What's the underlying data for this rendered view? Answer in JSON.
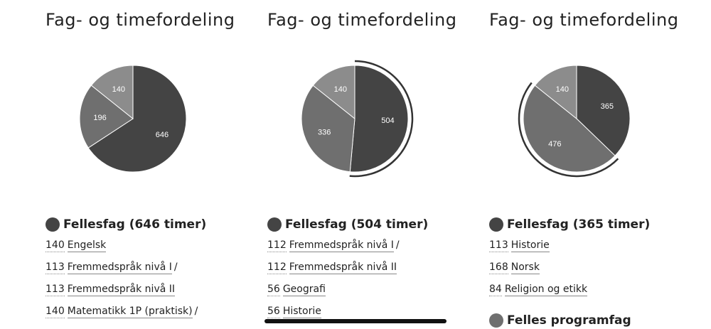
{
  "colors": {
    "dark": "#444444",
    "mid": "#6f6f6f",
    "light": "#8c8c8c"
  },
  "columns": [
    {
      "title": "Fag- og timefordeling",
      "group": "Fellesfag (646 timer)",
      "group_color": "#444444",
      "subjects": [
        {
          "hours": "140",
          "name": "Engelsk",
          "suffix": ""
        },
        {
          "hours": "113",
          "name": "Fremmedspråk nivå I",
          "suffix": "/"
        },
        {
          "hours": "113",
          "name": "Fremmedspråk nivå II",
          "suffix": ""
        },
        {
          "hours": "140",
          "name": "Matematikk 1P (praktisk)",
          "suffix": "/"
        }
      ],
      "next_group": ""
    },
    {
      "title": "Fag- og timefordeling",
      "group": "Fellesfag (504 timer)",
      "group_color": "#444444",
      "subjects": [
        {
          "hours": "112",
          "name": "Fremmedspråk nivå I",
          "suffix": "/"
        },
        {
          "hours": "112",
          "name": "Fremmedspråk nivå II",
          "suffix": ""
        },
        {
          "hours": "56",
          "name": "Geografi",
          "suffix": ""
        },
        {
          "hours": "56",
          "name": "Historie",
          "suffix": ""
        }
      ],
      "next_group": ""
    },
    {
      "title": "Fag- og timefordeling",
      "group": "Fellesfag (365 timer)",
      "group_color": "#444444",
      "subjects": [
        {
          "hours": "113",
          "name": "Historie",
          "suffix": ""
        },
        {
          "hours": "168",
          "name": "Norsk",
          "suffix": ""
        },
        {
          "hours": "84",
          "name": "Religion og etikk",
          "suffix": ""
        }
      ],
      "next_group": "Felles programfag",
      "next_group_color": "#6f6f6f"
    }
  ],
  "chart_data": [
    {
      "type": "pie",
      "slices": [
        {
          "label": "646",
          "value": 646,
          "color": "#444444"
        },
        {
          "label": "196",
          "value": 196,
          "color": "#6f6f6f"
        },
        {
          "label": "140",
          "value": 140,
          "color": "#8c8c8c"
        }
      ],
      "highlight": null
    },
    {
      "type": "pie",
      "slices": [
        {
          "label": "504",
          "value": 504,
          "color": "#444444"
        },
        {
          "label": "336",
          "value": 336,
          "color": "#6f6f6f"
        },
        {
          "label": "140",
          "value": 140,
          "color": "#8c8c8c"
        }
      ],
      "highlight": 0
    },
    {
      "type": "pie",
      "slices": [
        {
          "label": "365",
          "value": 365,
          "color": "#444444"
        },
        {
          "label": "476",
          "value": 476,
          "color": "#6f6f6f"
        },
        {
          "label": "140",
          "value": 140,
          "color": "#8c8c8c"
        }
      ],
      "highlight": 1
    }
  ]
}
